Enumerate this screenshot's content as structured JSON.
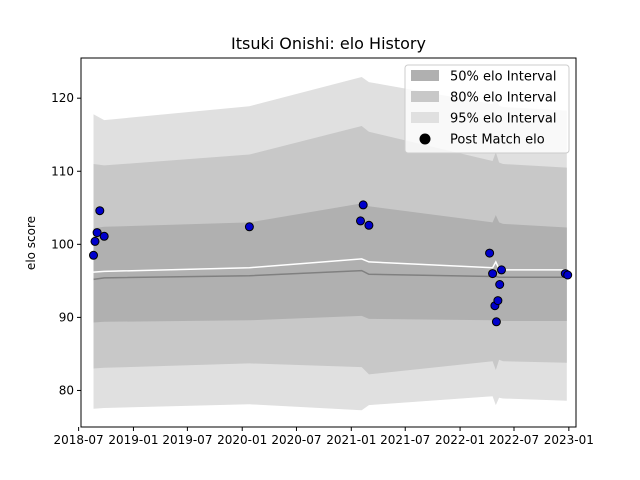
{
  "chart_data": {
    "type": "line",
    "title": "Itsuki Onishi: elo History",
    "xlabel": "",
    "ylabel": "elo score",
    "xlim": [
      "2018-07-09",
      "2023-01-25"
    ],
    "ylim": [
      75,
      125.5
    ],
    "x_ticks": [
      "2018-07",
      "2019-01",
      "2019-07",
      "2020-01",
      "2020-07",
      "2021-01",
      "2021-07",
      "2022-01",
      "2022-07",
      "2023-01"
    ],
    "y_ticks": [
      80,
      90,
      100,
      110,
      120
    ],
    "grid": false,
    "legend_position": "top-right",
    "legend": {
      "band50": "50% elo Interval",
      "band80": "80% elo Interval",
      "band95": "95% elo Interval",
      "post": "Post Match elo"
    },
    "colors": {
      "band50": "#b0b0b0",
      "band80": "#c8c8c8",
      "band95": "#e0e0e0",
      "median_line": "#808080",
      "mean_line": "#ffffff",
      "point_fill": "#0000cc",
      "point_edge": "#000000"
    },
    "band_x": [
      "2018-08-20",
      "2018-09-25",
      "2020-01-25",
      "2021-02-05",
      "2021-03-01",
      "2022-04-20",
      "2022-05-01",
      "2022-05-12",
      "2022-05-25",
      "2022-12-25"
    ],
    "median": [
      95.2,
      95.4,
      95.7,
      96.4,
      95.9,
      95.6,
      95.6,
      95.5,
      95.5,
      95.5
    ],
    "mean": [
      96.2,
      96.3,
      96.8,
      98.0,
      97.6,
      96.8,
      97.6,
      96.6,
      96.5,
      96.5
    ],
    "band50": {
      "upper": [
        102.2,
        102.4,
        103.0,
        105.6,
        105.2,
        103.0,
        104.0,
        103.0,
        102.8,
        102.3
      ],
      "lower": [
        89.3,
        89.4,
        89.6,
        90.2,
        89.8,
        89.6,
        89.0,
        89.6,
        89.5,
        89.5
      ]
    },
    "band80": {
      "upper": [
        111.0,
        110.8,
        112.3,
        116.2,
        115.4,
        111.4,
        112.6,
        111.2,
        111.0,
        110.5
      ],
      "lower": [
        83.0,
        83.1,
        83.7,
        83.2,
        82.2,
        84.0,
        82.8,
        84.2,
        84.0,
        83.8
      ]
    },
    "band95": {
      "upper": [
        117.8,
        117.0,
        118.9,
        122.9,
        122.2,
        119.2,
        120.2,
        119.0,
        118.8,
        118.3
      ],
      "lower": [
        77.5,
        77.6,
        78.1,
        77.3,
        78.0,
        79.2,
        78.0,
        79.0,
        78.9,
        78.6
      ]
    },
    "points": [
      {
        "x": "2018-08-20",
        "y": 98.5
      },
      {
        "x": "2018-08-25",
        "y": 100.4
      },
      {
        "x": "2018-09-01",
        "y": 101.6
      },
      {
        "x": "2018-09-10",
        "y": 104.6
      },
      {
        "x": "2018-09-25",
        "y": 101.1
      },
      {
        "x": "2020-01-25",
        "y": 102.4
      },
      {
        "x": "2021-02-01",
        "y": 103.2
      },
      {
        "x": "2021-02-10",
        "y": 105.4
      },
      {
        "x": "2021-03-01",
        "y": 102.6
      },
      {
        "x": "2022-04-10",
        "y": 98.8
      },
      {
        "x": "2022-04-20",
        "y": 96.0
      },
      {
        "x": "2022-04-28",
        "y": 91.6
      },
      {
        "x": "2022-05-03",
        "y": 89.4
      },
      {
        "x": "2022-05-08",
        "y": 92.3
      },
      {
        "x": "2022-05-14",
        "y": 94.5
      },
      {
        "x": "2022-05-20",
        "y": 96.5
      },
      {
        "x": "2022-12-20",
        "y": 96.0
      },
      {
        "x": "2022-12-28",
        "y": 95.8
      }
    ]
  }
}
